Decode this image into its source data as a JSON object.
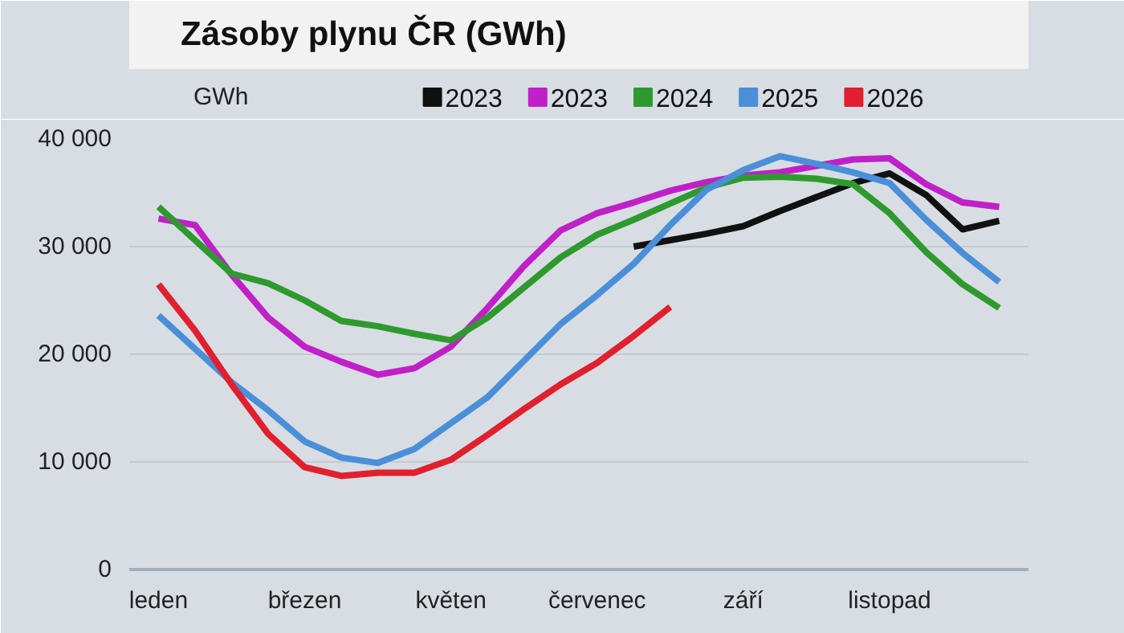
{
  "chart_data": {
    "type": "line",
    "title": "Zásoby plynu ČR (GWh)",
    "ylabel": "GWh",
    "categories": [
      "leden",
      null,
      null,
      null,
      "březen",
      null,
      null,
      null,
      "květen",
      null,
      null,
      null,
      "červenec",
      null,
      null,
      null,
      "září",
      null,
      null,
      null,
      "listopad",
      null,
      null,
      null
    ],
    "ylim": [
      0,
      40000
    ],
    "yticks": [
      {
        "value": 0,
        "label": "0"
      },
      {
        "value": 10000,
        "label": "10 000"
      },
      {
        "value": 20000,
        "label": "20 000"
      },
      {
        "value": 30000,
        "label": "30 000"
      },
      {
        "value": 40000,
        "label": "40 000"
      }
    ],
    "grid": "y",
    "legend": "top right",
    "line_style": "solid",
    "series": [
      {
        "name": "2023",
        "color": "#111111",
        "values": [
          null,
          null,
          null,
          null,
          null,
          null,
          null,
          null,
          null,
          null,
          null,
          null,
          null,
          30000,
          30600,
          31200,
          31900,
          33300,
          34600,
          35900,
          36800,
          34800,
          31600,
          32400
        ]
      },
      {
        "name": "2023",
        "color": "#c020c8",
        "values": [
          32600,
          32000,
          27400,
          23400,
          20700,
          19300,
          18100,
          18700,
          20700,
          24300,
          28200,
          31500,
          33100,
          34100,
          35200,
          36000,
          36600,
          36900,
          37500,
          38100,
          38200,
          35800,
          34100,
          33700
        ]
      },
      {
        "name": "2024",
        "color": "#2e9a2e",
        "values": [
          33700,
          30600,
          27500,
          26600,
          25000,
          23100,
          22600,
          21900,
          21300,
          23400,
          26200,
          29000,
          31100,
          32500,
          34000,
          35500,
          36400,
          36500,
          36300,
          35800,
          33100,
          29500,
          26500,
          24300
        ]
      },
      {
        "name": "2025",
        "color": "#4a8fd8",
        "values": [
          23600,
          20500,
          17400,
          14800,
          11900,
          10400,
          9900,
          11200,
          13600,
          16000,
          19400,
          22800,
          25500,
          28400,
          32000,
          35300,
          37100,
          38400,
          37700,
          36900,
          35900,
          32500,
          29400,
          26700
        ]
      },
      {
        "name": "2026",
        "color": "#e0202e",
        "values": [
          26500,
          22200,
          17200,
          12600,
          9500,
          8700,
          9000,
          9000,
          10200,
          12500,
          14900,
          17200,
          19200,
          21700,
          24400,
          null,
          null,
          null,
          null,
          null,
          null,
          null,
          null,
          null
        ]
      }
    ]
  }
}
